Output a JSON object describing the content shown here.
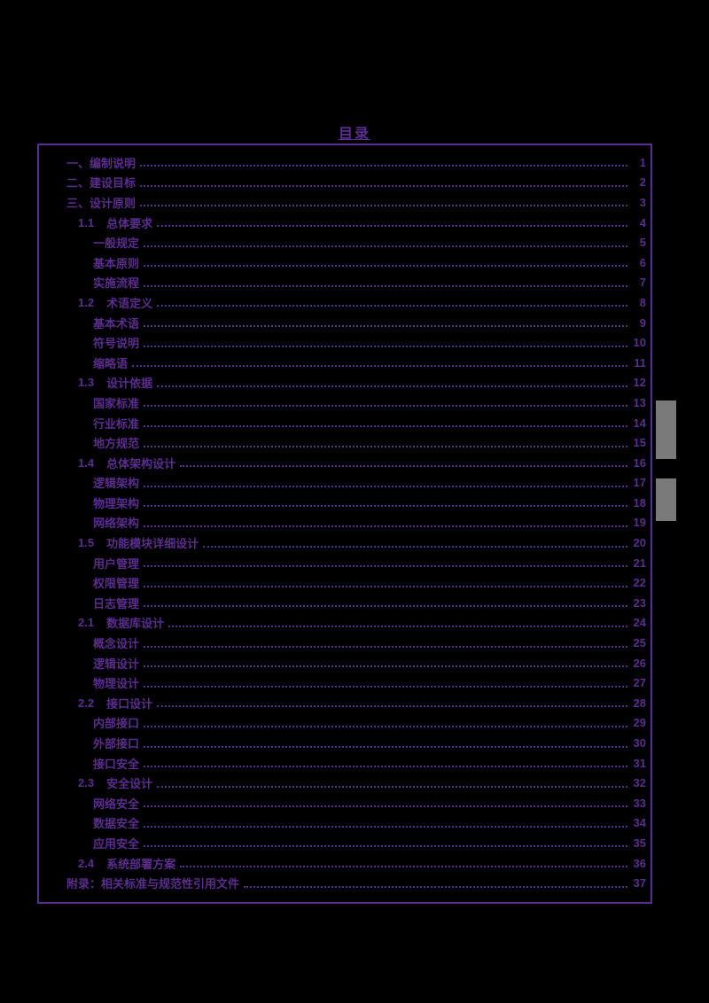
{
  "page": {
    "title": "目录",
    "colors": {
      "accent": "#5b2d8e",
      "background": "#000000",
      "scrollbar": "#8f8f8f"
    }
  },
  "toc": {
    "entries": [
      {
        "level": 0,
        "label": "一、编制说明",
        "page": "1"
      },
      {
        "level": 0,
        "label": "二、建设目标",
        "page": "2"
      },
      {
        "level": 0,
        "label": "三、设计原则",
        "page": "3"
      },
      {
        "level": 1,
        "num": "1.1",
        "label": "总体要求",
        "page": "4"
      },
      {
        "level": 2,
        "label": "一般规定",
        "page": "5"
      },
      {
        "level": 2,
        "label": "基本原则",
        "page": "6"
      },
      {
        "level": 2,
        "label": "实施流程",
        "page": "7"
      },
      {
        "level": 1,
        "num": "1.2",
        "label": "术语定义",
        "page": "8"
      },
      {
        "level": 2,
        "label": "基本术语",
        "page": "9"
      },
      {
        "level": 2,
        "label": "符号说明",
        "page": "10"
      },
      {
        "level": 2,
        "label": "缩略语",
        "page": "11"
      },
      {
        "level": 1,
        "num": "1.3",
        "label": "设计依据",
        "page": "12"
      },
      {
        "level": 2,
        "label": "国家标准",
        "page": "13"
      },
      {
        "level": 2,
        "label": "行业标准",
        "page": "14"
      },
      {
        "level": 2,
        "label": "地方规范",
        "page": "15"
      },
      {
        "level": 1,
        "num": "1.4",
        "label": "总体架构设计",
        "page": "16"
      },
      {
        "level": 2,
        "label": "逻辑架构",
        "page": "17"
      },
      {
        "level": 2,
        "label": "物理架构",
        "page": "18"
      },
      {
        "level": 2,
        "label": "网络架构",
        "page": "19"
      },
      {
        "level": 1,
        "num": "1.5",
        "label": "功能模块详细设计",
        "page": "20"
      },
      {
        "level": 2,
        "label": "用户管理",
        "page": "21"
      },
      {
        "level": 2,
        "label": "权限管理",
        "page": "22"
      },
      {
        "level": 2,
        "label": "日志管理",
        "page": "23"
      },
      {
        "level": 1,
        "num": "2.1",
        "label": "数据库设计",
        "page": "24"
      },
      {
        "level": 2,
        "label": "概念设计",
        "page": "25"
      },
      {
        "level": 2,
        "label": "逻辑设计",
        "page": "26"
      },
      {
        "level": 2,
        "label": "物理设计",
        "page": "27"
      },
      {
        "level": 1,
        "num": "2.2",
        "label": "接口设计",
        "page": "28"
      },
      {
        "level": 2,
        "label": "内部接口",
        "page": "29"
      },
      {
        "level": 2,
        "label": "外部接口",
        "page": "30"
      },
      {
        "level": 2,
        "label": "接口安全",
        "page": "31"
      },
      {
        "level": 1,
        "num": "2.3",
        "label": "安全设计",
        "page": "32"
      },
      {
        "level": 2,
        "label": "网络安全",
        "page": "33"
      },
      {
        "level": 2,
        "label": "数据安全",
        "page": "34"
      },
      {
        "level": 2,
        "label": "应用安全",
        "page": "35"
      },
      {
        "level": 1,
        "num": "2.4",
        "label": "系统部署方案",
        "page": "36"
      },
      {
        "level": 0,
        "label": "附录：相关标准与规范性引用文件",
        "page": "37"
      }
    ]
  }
}
